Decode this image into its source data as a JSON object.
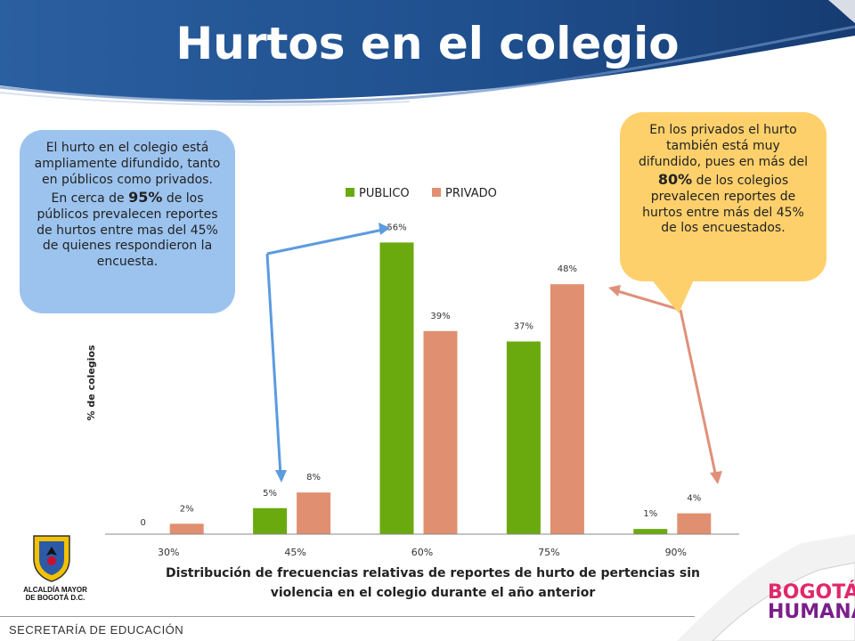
{
  "title": "Hurtos en el colegio",
  "callouts": {
    "left": {
      "pre": "El hurto en el colegio está ampliamente difundido, tanto en públicos como privados. En cerca de",
      "highlight": "95%",
      "post": "de los públicos prevalecen reportes de hurtos entre mas del 45% de quienes respondieron la encuesta."
    },
    "right": {
      "pre": "En los privados el hurto también está muy difundido, pues en más del",
      "highlight": "80%",
      "post": "de los colegios prevalecen reportes de hurtos entre más del 45% de los encuestados."
    }
  },
  "footer": {
    "secretaria": "SECRETARÍA DE EDUCACIÓN",
    "alcaldia": "ALCALDÍA MAYOR DE BOGOTÁ D.C.",
    "bogota_line1": "BOGOTÁ",
    "bogota_line2": "HUMANA"
  },
  "colors": {
    "publico": "#6aaa0e",
    "privado": "#e09070",
    "header": "#1f4e8c",
    "left_callout": "#9cc3ee",
    "right_callout": "#fdd06b",
    "left_arrow": "#5b9be0",
    "right_arrow": "#e0907a"
  },
  "chart_data": {
    "type": "bar",
    "categories": [
      "30%",
      "45%",
      "60%",
      "75%",
      "90%"
    ],
    "series": [
      {
        "name": "PUBLICO",
        "values": [
          0,
          5,
          56,
          37,
          1
        ],
        "labels": [
          "0",
          "5%",
          "56%",
          "37%",
          "1%"
        ]
      },
      {
        "name": "PRIVADO",
        "values": [
          2,
          8,
          39,
          48,
          4
        ],
        "labels": [
          "2%",
          "8%",
          "39%",
          "48%",
          "4%"
        ]
      }
    ],
    "ylabel": "% de colegios",
    "xlabel": "Distribución de frecuencias relativas de reportes de hurto de pertencias sin violencia en el colegio durante el año anterior",
    "legend_position": "top",
    "ylim": [
      0,
      60
    ],
    "grid": false
  }
}
